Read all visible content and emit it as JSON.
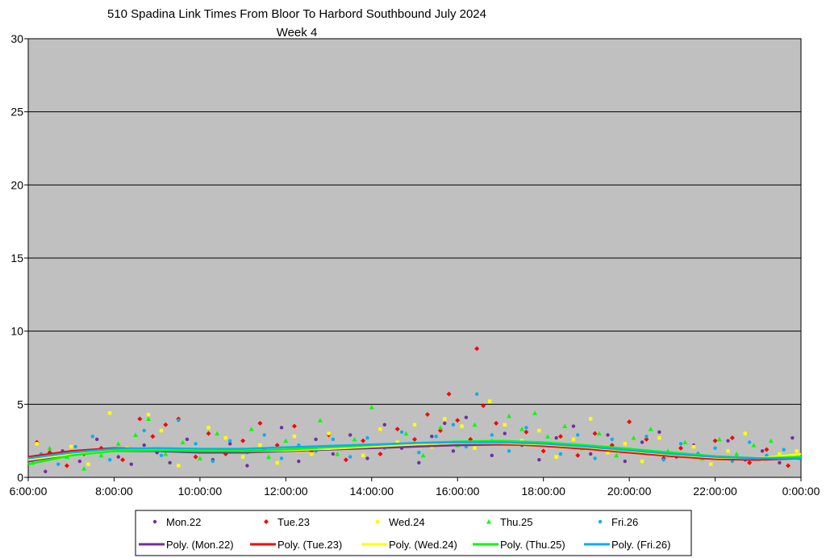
{
  "chart_data": {
    "type": "scatter",
    "title": "510 Spadina Link Times From Bloor To Harbord Southbound July 2024",
    "subtitle": "Week 4",
    "xlabel": "",
    "ylabel": "",
    "xlim": [
      "6:00:00",
      "0:00:00"
    ],
    "ylim": [
      0,
      30
    ],
    "y_ticks": [
      "0",
      "5",
      "10",
      "15",
      "20",
      "25",
      "30"
    ],
    "x_ticks": [
      "6:00:00",
      "8:00:00",
      "10:00:00",
      "12:00:00",
      "14:00:00",
      "16:00:00",
      "18:00:00",
      "20:00:00",
      "22:00:00",
      "0:00:00"
    ],
    "grid": true,
    "plot_background": "#c0c0c0",
    "legend_position": "bottom",
    "series": [
      {
        "name": "Mon.22",
        "marker": "circle",
        "color": "#7030a0",
        "points": [
          [
            6.1,
            1.3
          ],
          [
            6.4,
            0.4
          ],
          [
            6.8,
            1.8
          ],
          [
            7.2,
            1.1
          ],
          [
            7.6,
            2.6
          ],
          [
            8.1,
            1.4
          ],
          [
            8.4,
            0.9
          ],
          [
            8.7,
            2.2
          ],
          [
            9.0,
            1.7
          ],
          [
            9.3,
            1.0
          ],
          [
            9.7,
            2.6
          ],
          [
            10.0,
            1.9
          ],
          [
            10.3,
            1.2
          ],
          [
            10.7,
            2.3
          ],
          [
            11.1,
            0.8
          ],
          [
            11.5,
            1.9
          ],
          [
            11.9,
            3.4
          ],
          [
            12.3,
            1.1
          ],
          [
            12.7,
            2.6
          ],
          [
            13.1,
            1.6
          ],
          [
            13.5,
            2.9
          ],
          [
            13.9,
            1.3
          ],
          [
            14.3,
            3.6
          ],
          [
            14.7,
            2.0
          ],
          [
            15.1,
            1.0
          ],
          [
            15.4,
            2.8
          ],
          [
            15.7,
            3.7
          ],
          [
            15.9,
            1.8
          ],
          [
            16.2,
            4.1
          ],
          [
            16.5,
            2.4
          ],
          [
            16.8,
            1.5
          ],
          [
            17.1,
            3.0
          ],
          [
            17.5,
            2.2
          ],
          [
            17.9,
            1.2
          ],
          [
            18.3,
            2.7
          ],
          [
            18.7,
            3.5
          ],
          [
            19.1,
            1.6
          ],
          [
            19.5,
            2.9
          ],
          [
            19.9,
            1.1
          ],
          [
            20.3,
            2.4
          ],
          [
            20.7,
            3.1
          ],
          [
            21.1,
            1.4
          ],
          [
            21.5,
            2.2
          ],
          [
            21.9,
            0.9
          ],
          [
            22.3,
            2.5
          ],
          [
            22.7,
            1.2
          ],
          [
            23.1,
            1.8
          ],
          [
            23.5,
            1.0
          ],
          [
            23.8,
            2.7
          ]
        ]
      },
      {
        "name": "Tue.23",
        "marker": "diamond",
        "color": "#ff0000",
        "points": [
          [
            6.2,
            2.4
          ],
          [
            6.5,
            1.7
          ],
          [
            6.9,
            0.8
          ],
          [
            7.3,
            1.6
          ],
          [
            7.7,
            2.0
          ],
          [
            8.2,
            1.2
          ],
          [
            8.6,
            4.0
          ],
          [
            8.9,
            2.8
          ],
          [
            9.2,
            3.6
          ],
          [
            9.5,
            4.0
          ],
          [
            9.9,
            1.4
          ],
          [
            10.2,
            3.0
          ],
          [
            10.6,
            1.6
          ],
          [
            11.0,
            2.5
          ],
          [
            11.4,
            3.7
          ],
          [
            11.8,
            2.2
          ],
          [
            12.2,
            3.5
          ],
          [
            12.6,
            1.8
          ],
          [
            13.0,
            2.9
          ],
          [
            13.4,
            1.2
          ],
          [
            13.8,
            2.5
          ],
          [
            14.2,
            1.6
          ],
          [
            14.6,
            3.3
          ],
          [
            15.0,
            2.6
          ],
          [
            15.3,
            4.3
          ],
          [
            15.6,
            3.2
          ],
          [
            15.8,
            5.7
          ],
          [
            16.0,
            3.9
          ],
          [
            16.3,
            2.6
          ],
          [
            16.45,
            8.8
          ],
          [
            16.6,
            4.9
          ],
          [
            16.9,
            3.7
          ],
          [
            17.2,
            2.4
          ],
          [
            17.6,
            3.1
          ],
          [
            18.0,
            1.8
          ],
          [
            18.4,
            2.8
          ],
          [
            18.8,
            1.5
          ],
          [
            19.2,
            3.0
          ],
          [
            19.6,
            2.2
          ],
          [
            20.0,
            3.8
          ],
          [
            20.4,
            2.6
          ],
          [
            20.8,
            1.3
          ],
          [
            21.2,
            2.0
          ],
          [
            21.6,
            1.6
          ],
          [
            22.0,
            2.5
          ],
          [
            22.4,
            2.7
          ],
          [
            22.8,
            1.0
          ],
          [
            23.2,
            1.9
          ],
          [
            23.7,
            0.8
          ]
        ]
      },
      {
        "name": "Wed.24",
        "marker": "square",
        "color": "#ffff00",
        "points": [
          [
            6.2,
            2.3
          ],
          [
            6.6,
            1.5
          ],
          [
            7.0,
            2.1
          ],
          [
            7.4,
            0.9
          ],
          [
            7.9,
            4.4
          ],
          [
            8.3,
            2.0
          ],
          [
            8.8,
            4.3
          ],
          [
            9.1,
            3.2
          ],
          [
            9.5,
            0.8
          ],
          [
            9.8,
            1.9
          ],
          [
            10.2,
            3.4
          ],
          [
            10.6,
            2.7
          ],
          [
            11.0,
            1.4
          ],
          [
            11.4,
            2.2
          ],
          [
            11.8,
            1.0
          ],
          [
            12.2,
            2.8
          ],
          [
            12.6,
            1.6
          ],
          [
            13.0,
            3.0
          ],
          [
            13.4,
            2.0
          ],
          [
            13.8,
            1.5
          ],
          [
            14.2,
            3.3
          ],
          [
            14.6,
            2.4
          ],
          [
            15.0,
            3.6
          ],
          [
            15.4,
            2.1
          ],
          [
            15.7,
            4.0
          ],
          [
            16.1,
            3.5
          ],
          [
            16.4,
            2.0
          ],
          [
            16.75,
            5.2
          ],
          [
            17.1,
            3.6
          ],
          [
            17.5,
            2.5
          ],
          [
            17.9,
            3.2
          ],
          [
            18.3,
            1.4
          ],
          [
            18.7,
            2.6
          ],
          [
            19.1,
            4.0
          ],
          [
            19.5,
            1.7
          ],
          [
            19.9,
            2.3
          ],
          [
            20.3,
            1.1
          ],
          [
            20.7,
            2.7
          ],
          [
            21.1,
            1.5
          ],
          [
            21.5,
            2.1
          ],
          [
            21.9,
            0.9
          ],
          [
            22.3,
            1.8
          ],
          [
            22.7,
            3.0
          ],
          [
            23.1,
            1.2
          ],
          [
            23.5,
            1.6
          ],
          [
            23.9,
            1.8
          ]
        ]
      },
      {
        "name": "Thu.25",
        "marker": "triangle",
        "color": "#00ff00",
        "points": [
          [
            6.1,
            1.0
          ],
          [
            6.5,
            2.0
          ],
          [
            6.9,
            1.4
          ],
          [
            7.3,
            0.6
          ],
          [
            7.7,
            1.5
          ],
          [
            8.1,
            2.3
          ],
          [
            8.5,
            2.9
          ],
          [
            8.8,
            4.0
          ],
          [
            9.2,
            1.6
          ],
          [
            9.6,
            2.4
          ],
          [
            10.0,
            1.3
          ],
          [
            10.4,
            3.0
          ],
          [
            10.8,
            1.8
          ],
          [
            11.2,
            3.3
          ],
          [
            11.6,
            1.4
          ],
          [
            12.0,
            2.5
          ],
          [
            12.4,
            1.9
          ],
          [
            12.8,
            3.9
          ],
          [
            13.2,
            1.6
          ],
          [
            13.6,
            2.6
          ],
          [
            14.0,
            4.8
          ],
          [
            14.4,
            2.1
          ],
          [
            14.8,
            3.0
          ],
          [
            15.2,
            1.5
          ],
          [
            15.6,
            3.4
          ],
          [
            16.0,
            2.2
          ],
          [
            16.4,
            3.6
          ],
          [
            16.8,
            2.5
          ],
          [
            17.2,
            4.2
          ],
          [
            17.5,
            3.3
          ],
          [
            17.8,
            4.4
          ],
          [
            18.1,
            2.8
          ],
          [
            18.5,
            3.5
          ],
          [
            18.9,
            2.0
          ],
          [
            19.3,
            3.0
          ],
          [
            19.7,
            1.5
          ],
          [
            20.1,
            2.7
          ],
          [
            20.5,
            3.3
          ],
          [
            20.9,
            1.8
          ],
          [
            21.3,
            2.4
          ],
          [
            21.7,
            1.3
          ],
          [
            22.1,
            2.6
          ],
          [
            22.5,
            1.6
          ],
          [
            22.9,
            2.2
          ],
          [
            23.3,
            2.5
          ],
          [
            23.7,
            1.4
          ]
        ]
      },
      {
        "name": "Fri.26",
        "marker": "circle",
        "color": "#00b0f0",
        "points": [
          [
            6.3,
            1.6
          ],
          [
            6.7,
            0.9
          ],
          [
            7.1,
            2.1
          ],
          [
            7.5,
            2.8
          ],
          [
            7.9,
            1.2
          ],
          [
            8.3,
            1.9
          ],
          [
            8.7,
            3.2
          ],
          [
            9.1,
            1.5
          ],
          [
            9.5,
            3.9
          ],
          [
            9.9,
            2.3
          ],
          [
            10.3,
            1.1
          ],
          [
            10.7,
            2.5
          ],
          [
            11.1,
            1.7
          ],
          [
            11.5,
            2.9
          ],
          [
            11.9,
            1.3
          ],
          [
            12.3,
            2.2
          ],
          [
            12.7,
            1.8
          ],
          [
            13.1,
            2.6
          ],
          [
            13.5,
            1.4
          ],
          [
            13.9,
            2.7
          ],
          [
            14.3,
            2.0
          ],
          [
            14.7,
            3.1
          ],
          [
            15.1,
            1.7
          ],
          [
            15.5,
            2.8
          ],
          [
            15.9,
            3.6
          ],
          [
            16.2,
            2.1
          ],
          [
            16.45,
            5.7
          ],
          [
            16.8,
            2.9
          ],
          [
            17.2,
            1.8
          ],
          [
            17.6,
            3.4
          ],
          [
            18.0,
            2.3
          ],
          [
            18.4,
            1.6
          ],
          [
            18.8,
            2.9
          ],
          [
            19.2,
            1.3
          ],
          [
            19.6,
            2.6
          ],
          [
            20.0,
            1.9
          ],
          [
            20.4,
            2.8
          ],
          [
            20.8,
            1.2
          ],
          [
            21.2,
            2.3
          ],
          [
            21.6,
            1.6
          ],
          [
            22.0,
            2.0
          ],
          [
            22.4,
            1.1
          ],
          [
            22.8,
            2.4
          ],
          [
            23.2,
            1.5
          ],
          [
            23.6,
            1.9
          ],
          [
            23.95,
            1.3
          ]
        ]
      }
    ],
    "trendlines": [
      {
        "name": "Poly. (Mon.22)",
        "color": "#7030a0",
        "x": [
          6,
          7,
          8,
          9,
          10,
          11,
          12,
          13,
          14,
          15,
          16,
          17,
          18,
          19,
          20,
          21,
          22,
          23,
          24
        ],
        "y": [
          1.1,
          1.6,
          1.8,
          1.8,
          1.7,
          1.7,
          1.8,
          1.9,
          2.0,
          2.1,
          2.2,
          2.25,
          2.2,
          2.0,
          1.8,
          1.6,
          1.4,
          1.3,
          1.3
        ]
      },
      {
        "name": "Poly. (Tue.23)",
        "color": "#ff0000",
        "x": [
          6,
          7,
          8,
          9,
          10,
          11,
          12,
          13,
          14,
          15,
          16,
          17,
          18,
          19,
          20,
          21,
          22,
          23,
          24
        ],
        "y": [
          1.4,
          1.8,
          2.0,
          1.95,
          1.85,
          1.8,
          1.85,
          1.95,
          2.1,
          2.25,
          2.35,
          2.3,
          2.15,
          1.95,
          1.7,
          1.45,
          1.25,
          1.2,
          1.3
        ]
      },
      {
        "name": "Poly. (Wed.24)",
        "color": "#ffff00",
        "x": [
          6,
          7,
          8,
          9,
          10,
          11,
          12,
          13,
          14,
          15,
          16,
          17,
          18,
          19,
          20,
          21,
          22,
          23,
          24
        ],
        "y": [
          1.2,
          1.6,
          1.85,
          1.9,
          1.85,
          1.8,
          1.85,
          1.95,
          2.1,
          2.25,
          2.35,
          2.35,
          2.25,
          2.05,
          1.8,
          1.55,
          1.35,
          1.3,
          1.6
        ]
      },
      {
        "name": "Poly. (Thu.25)",
        "color": "#00ff00",
        "x": [
          6,
          7,
          8,
          9,
          10,
          11,
          12,
          13,
          14,
          15,
          16,
          17,
          18,
          19,
          20,
          21,
          22,
          23,
          24
        ],
        "y": [
          0.9,
          1.5,
          1.8,
          1.85,
          1.8,
          1.8,
          1.9,
          2.05,
          2.2,
          2.35,
          2.45,
          2.5,
          2.4,
          2.2,
          1.95,
          1.7,
          1.45,
          1.3,
          1.4
        ]
      },
      {
        "name": "Poly. (Fri.26)",
        "color": "#00b0f0",
        "x": [
          6,
          7,
          8,
          9,
          10,
          11,
          12,
          13,
          14,
          15,
          16,
          17,
          18,
          19,
          20,
          21,
          22,
          23,
          24
        ],
        "y": [
          1.3,
          1.7,
          1.95,
          2.0,
          1.95,
          1.95,
          2.05,
          2.15,
          2.25,
          2.35,
          2.4,
          2.4,
          2.3,
          2.1,
          1.85,
          1.6,
          1.4,
          1.3,
          1.3
        ]
      }
    ]
  }
}
